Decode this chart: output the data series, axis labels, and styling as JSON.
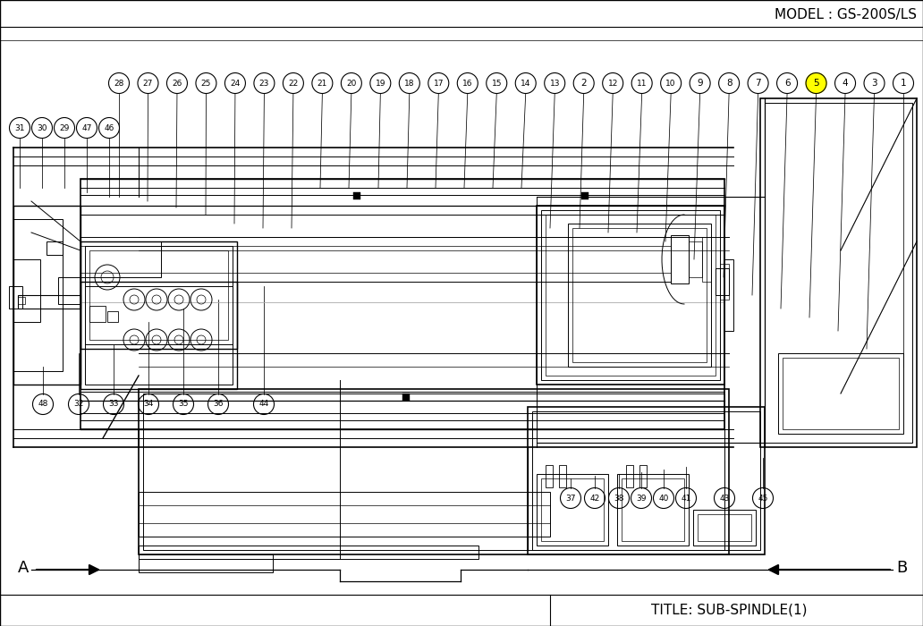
{
  "title": "TITLE: SUB-SPINDLE(1)",
  "model": "MODEL : GS-200S/LS",
  "background_color": "#ffffff",
  "line_color": "#000000",
  "gray_color": "#888888",
  "highlight_color": "#ffff00",
  "text_color": "#000000",
  "fig_width": 10.32,
  "fig_height": 7.0,
  "dpi": 100,
  "top_labels": [
    "28",
    "27",
    "26",
    "25",
    "24",
    "23",
    "22",
    "21",
    "20",
    "19",
    "18",
    "17",
    "16",
    "15",
    "14",
    "13",
    "2",
    "12",
    "11",
    "10",
    "9",
    "8",
    "7",
    "6",
    "5",
    "4",
    "3",
    "1"
  ],
  "left_labels": [
    "31",
    "30",
    "29",
    "47",
    "46"
  ],
  "bl_labels": [
    "48",
    "32",
    "33",
    "34",
    "35",
    "36",
    "44"
  ],
  "br_labels": [
    "37",
    "42",
    "38",
    "39",
    "40",
    "41",
    "43",
    "45"
  ],
  "highlighted_callout": "5",
  "arrow_A_label": "A",
  "arrow_B_label": "B",
  "callout_r": 11.5
}
